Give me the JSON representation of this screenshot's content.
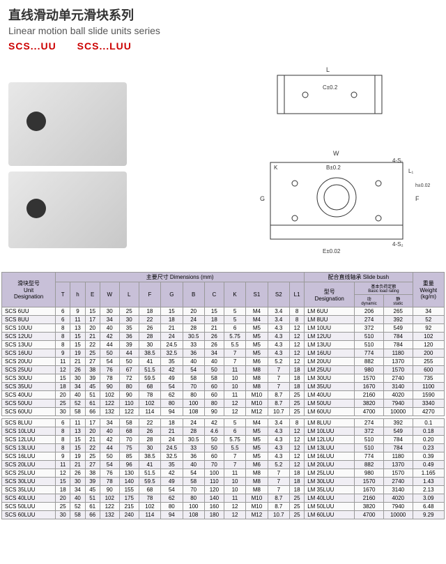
{
  "header": {
    "title_cn": "直线滑动单元滑块系列",
    "title_en": "Linear motion ball slide units series",
    "models": "SCS...UU　　SCS...LUU"
  },
  "table": {
    "group1_label": "滑块型号\nUnit\nDesignation",
    "group2_label": "主要尺寸 Dimensions (mm)",
    "group3_label": "配合直线轴承 Slide bush",
    "group4_label": "重量\nWeight\n(kg/m)",
    "sub_g3_1": "型号\nDesignation",
    "sub_g3_2": "基本负荷定额\nBasic load rating",
    "dyn": "动\ndynamic",
    "stat": "静\nstatic",
    "cols": [
      "T",
      "h",
      "E",
      "W",
      "L",
      "F",
      "G",
      "B",
      "C",
      "K",
      "S1",
      "S2",
      "L1"
    ],
    "rows1": [
      [
        "SCS 6UU",
        "6",
        "9",
        "15",
        "30",
        "25",
        "18",
        "15",
        "20",
        "15",
        "5",
        "M4",
        "3.4",
        "8",
        "LM 6UU",
        "206",
        "265",
        "34"
      ],
      [
        "SCS 8UU",
        "6",
        "11",
        "17",
        "34",
        "30",
        "22",
        "18",
        "24",
        "18",
        "5",
        "M4",
        "3.4",
        "8",
        "LM 8UU",
        "274",
        "392",
        "52"
      ],
      [
        "SCS 10UU",
        "8",
        "13",
        "20",
        "40",
        "35",
        "26",
        "21",
        "28",
        "21",
        "6",
        "M5",
        "4.3",
        "12",
        "LM 10UU",
        "372",
        "549",
        "92"
      ],
      [
        "SCS 12UU",
        "8",
        "15",
        "21",
        "42",
        "36",
        "28",
        "24",
        "30.5",
        "26",
        "5.75",
        "M5",
        "4.3",
        "12",
        "LM 12UU",
        "510",
        "784",
        "102"
      ],
      [
        "SCS 13UU",
        "8",
        "15",
        "22",
        "44",
        "39",
        "30",
        "24.5",
        "33",
        "26",
        "5.5",
        "M5",
        "4.3",
        "12",
        "LM 13UU",
        "510",
        "784",
        "120"
      ],
      [
        "SCS 16UU",
        "9",
        "19",
        "25",
        "50",
        "44",
        "38.5",
        "32.5",
        "36",
        "34",
        "7",
        "M5",
        "4.3",
        "12",
        "LM 16UU",
        "774",
        "1180",
        "200"
      ],
      [
        "SCS 20UU",
        "11",
        "21",
        "27",
        "54",
        "50",
        "41",
        "35",
        "40",
        "40",
        "7",
        "M6",
        "5.2",
        "12",
        "LM 20UU",
        "882",
        "1370",
        "255"
      ],
      [
        "SCS 25UU",
        "12",
        "26",
        "38",
        "76",
        "67",
        "51.5",
        "42",
        "54",
        "50",
        "11",
        "M8",
        "7",
        "18",
        "LM 25UU",
        "980",
        "1570",
        "600"
      ],
      [
        "SCS 30UU",
        "15",
        "30",
        "39",
        "78",
        "72",
        "59.5",
        "49",
        "58",
        "58",
        "10",
        "M8",
        "7",
        "18",
        "LM 30UU",
        "1570",
        "2740",
        "735"
      ],
      [
        "SCS 35UU",
        "18",
        "34",
        "45",
        "90",
        "80",
        "68",
        "54",
        "70",
        "60",
        "10",
        "M8",
        "7",
        "18",
        "LM 35UU",
        "1670",
        "3140",
        "1100"
      ],
      [
        "SCS 40UU",
        "20",
        "40",
        "51",
        "102",
        "90",
        "78",
        "62",
        "80",
        "60",
        "11",
        "M10",
        "8.7",
        "25",
        "LM 40UU",
        "2160",
        "4020",
        "1590"
      ],
      [
        "SCS 50UU",
        "25",
        "52",
        "61",
        "122",
        "110",
        "102",
        "80",
        "100",
        "80",
        "12",
        "M10",
        "8.7",
        "25",
        "LM 50UU",
        "3820",
        "7940",
        "3340"
      ],
      [
        "SCS 60UU",
        "30",
        "58",
        "66",
        "132",
        "122",
        "114",
        "94",
        "108",
        "90",
        "12",
        "M12",
        "10.7",
        "25",
        "LM 60UU",
        "4700",
        "10000",
        "4270"
      ]
    ],
    "rows2": [
      [
        "SCS 8LUU",
        "6",
        "11",
        "17",
        "34",
        "58",
        "22",
        "18",
        "24",
        "42",
        "5",
        "M4",
        "3.4",
        "8",
        "LM 8LUU",
        "274",
        "392",
        "0.1"
      ],
      [
        "SCS 10LUU",
        "8",
        "13",
        "20",
        "40",
        "68",
        "26",
        "21",
        "28",
        "4.6",
        "6",
        "M5",
        "4.3",
        "12",
        "LM 10LUU",
        "372",
        "549",
        "0.18"
      ],
      [
        "SCS 12LUU",
        "8",
        "15",
        "21",
        "42",
        "70",
        "28",
        "24",
        "30.5",
        "50",
        "5.75",
        "M5",
        "4.3",
        "12",
        "LM 12LUU",
        "510",
        "784",
        "0.20"
      ],
      [
        "SCS 13LUU",
        "8",
        "15",
        "22",
        "44",
        "75",
        "30",
        "24.5",
        "33",
        "50",
        "5.5",
        "M5",
        "4.3",
        "12",
        "LM 13LUU",
        "510",
        "784",
        "0.23"
      ],
      [
        "SCS 16LUU",
        "9",
        "19",
        "25",
        "50",
        "85",
        "38.5",
        "32.5",
        "36",
        "60",
        "7",
        "M5",
        "4.3",
        "12",
        "LM 16LUU",
        "774",
        "1180",
        "0.39"
      ],
      [
        "SCS 20LUU",
        "11",
        "21",
        "27",
        "54",
        "96",
        "41",
        "35",
        "40",
        "70",
        "7",
        "M6",
        "5.2",
        "12",
        "LM 20LUU",
        "882",
        "1370",
        "0.49"
      ],
      [
        "SCS 25LUU",
        "12",
        "26",
        "38",
        "76",
        "130",
        "51.5",
        "42",
        "54",
        "100",
        "11",
        "M8",
        "7",
        "18",
        "LM 25LUU",
        "980",
        "1570",
        "1.165"
      ],
      [
        "SCS 30LUU",
        "15",
        "30",
        "39",
        "78",
        "140",
        "59.5",
        "49",
        "58",
        "110",
        "10",
        "M8",
        "7",
        "18",
        "LM 30LUU",
        "1570",
        "2740",
        "1.43"
      ],
      [
        "SCS 35LUU",
        "18",
        "34",
        "45",
        "90",
        "155",
        "68",
        "54",
        "70",
        "120",
        "10",
        "M8",
        "7",
        "18",
        "LM 35LUU",
        "1670",
        "3140",
        "2.13"
      ],
      [
        "SCS 40LUU",
        "20",
        "40",
        "51",
        "102",
        "175",
        "78",
        "62",
        "80",
        "140",
        "11",
        "M10",
        "8.7",
        "25",
        "LM 40LUU",
        "2160",
        "4020",
        "3.09"
      ],
      [
        "SCS 50LUU",
        "25",
        "52",
        "61",
        "122",
        "215",
        "102",
        "80",
        "100",
        "160",
        "12",
        "M10",
        "8.7",
        "25",
        "LM 50LUU",
        "3820",
        "7940",
        "6.48"
      ],
      [
        "SCS 60LUU",
        "30",
        "58",
        "66",
        "132",
        "240",
        "114",
        "94",
        "108",
        "180",
        "12",
        "M12",
        "10.7",
        "25",
        "LM 60LUU",
        "4700",
        "10000",
        "9.29"
      ]
    ]
  }
}
